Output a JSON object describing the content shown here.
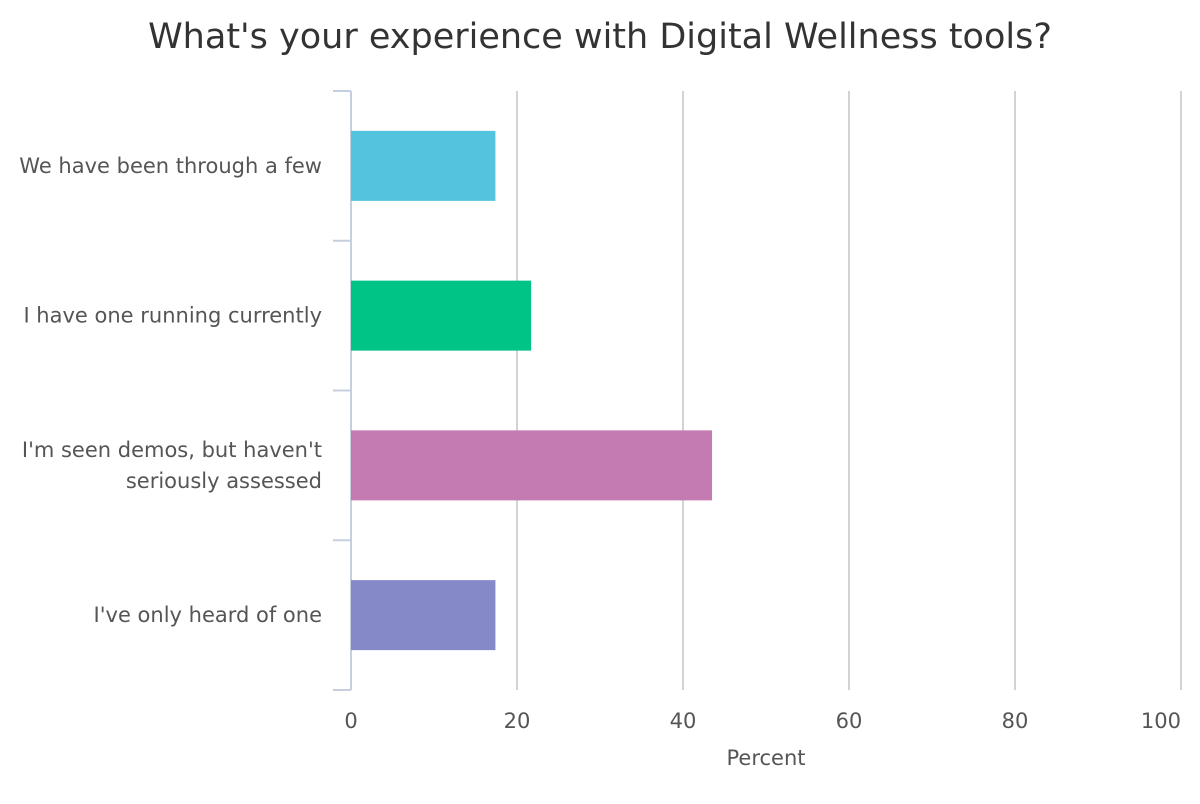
{
  "chart_data": {
    "type": "bar",
    "orientation": "horizontal",
    "title": "What's your experience with Digital Wellness tools?",
    "categories": [
      "We have been through a few",
      "I have one running currently",
      "I'm seen demos, but haven't seriously assessed",
      "I've only heard of one"
    ],
    "category_lines": [
      [
        "We have been through a few"
      ],
      [
        "I have one running currently"
      ],
      [
        "I'm seen demos, but haven't",
        "seriously assessed"
      ],
      [
        "I've only heard of one"
      ]
    ],
    "values": [
      17.4,
      21.7,
      43.5,
      17.4
    ],
    "colors": [
      "#54c3de",
      "#00c386",
      "#c47bb2",
      "#8589c7"
    ],
    "xlabel": "Percent",
    "xlim": [
      0,
      100
    ],
    "xticks": [
      "0",
      "20",
      "40",
      "60",
      "80",
      "100"
    ],
    "grid": true,
    "legend": "none"
  }
}
